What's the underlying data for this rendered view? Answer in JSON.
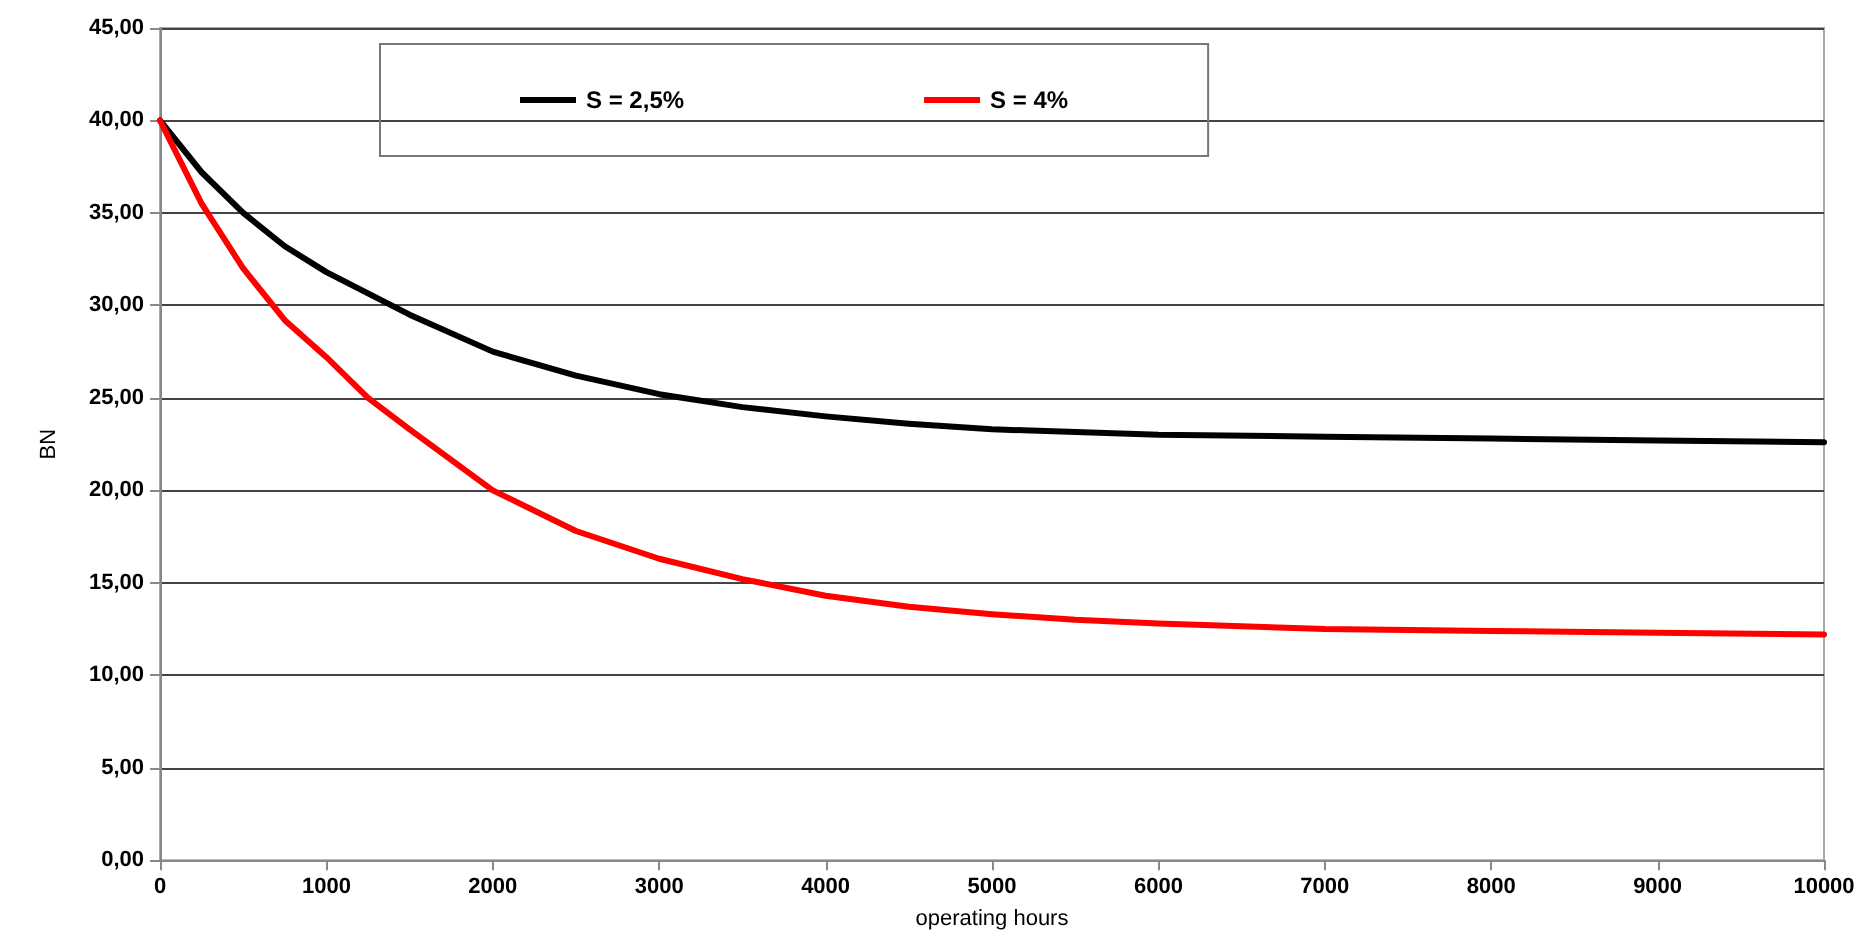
{
  "chart_data": {
    "type": "line",
    "xlabel": "operating hours",
    "ylabel": "BN",
    "xlim": [
      0,
      10000
    ],
    "xticks": [
      0,
      1000,
      2000,
      3000,
      4000,
      5000,
      6000,
      7000,
      8000,
      9000,
      10000
    ],
    "ylim": [
      0,
      45
    ],
    "yticks": [
      {
        "value": 0,
        "label": "0,00"
      },
      {
        "value": 5,
        "label": "5,00"
      },
      {
        "value": 10,
        "label": "10,00"
      },
      {
        "value": 15,
        "label": "15,00"
      },
      {
        "value": 20,
        "label": "20,00"
      },
      {
        "value": 25,
        "label": "25,00"
      },
      {
        "value": 30,
        "label": "30,00"
      },
      {
        "value": 35,
        "label": "35,00"
      },
      {
        "value": 40,
        "label": "40,00"
      },
      {
        "value": 45,
        "label": "45,00"
      }
    ],
    "grid": "y",
    "legend": "top",
    "marker": "none",
    "line_style": "solid",
    "series": [
      {
        "name": "S = 2,5%",
        "color": "#000000",
        "x": [
          0,
          250,
          500,
          750,
          1000,
          1500,
          2000,
          2500,
          3000,
          3500,
          4000,
          4500,
          5000,
          6000,
          7000,
          8000,
          9000,
          10000
        ],
        "values": [
          40,
          37.2,
          35,
          33.2,
          31.8,
          29.5,
          27.5,
          26.2,
          25.2,
          24.5,
          24,
          23.6,
          23.3,
          23,
          22.9,
          22.8,
          22.7,
          22.6
        ]
      },
      {
        "name": "S = 4%",
        "color": "#ff0000",
        "x": [
          0,
          250,
          500,
          750,
          1000,
          1250,
          1500,
          2000,
          2500,
          3000,
          3500,
          4000,
          4500,
          5000,
          5500,
          6000,
          7000,
          8000,
          9000,
          10000
        ],
        "values": [
          40,
          35.5,
          32,
          29.2,
          27.2,
          25,
          23.3,
          20,
          17.8,
          16.3,
          15.2,
          14.3,
          13.7,
          13.3,
          13,
          12.8,
          12.5,
          12.4,
          12.3,
          12.2
        ]
      }
    ]
  }
}
